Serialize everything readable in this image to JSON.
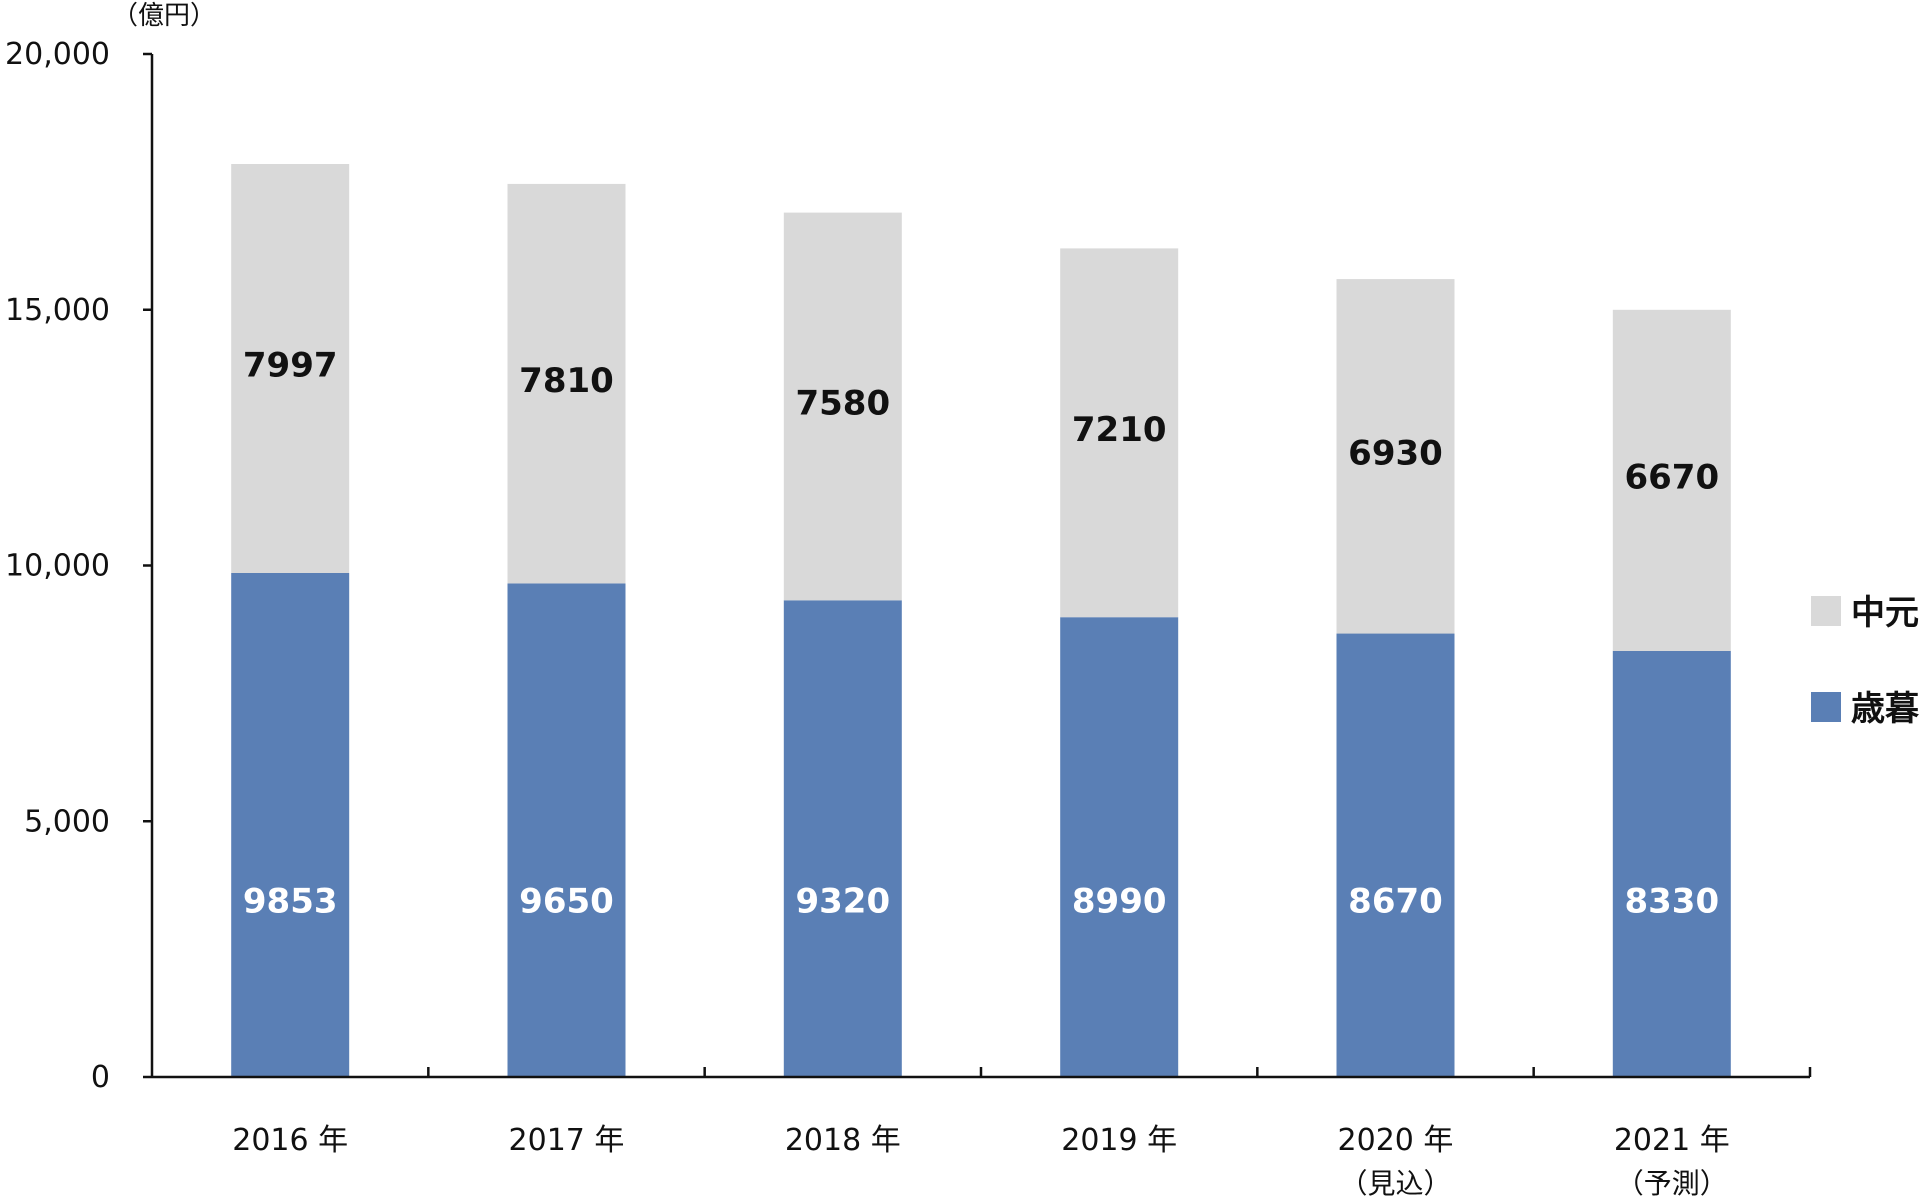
{
  "chart_data": {
    "type": "bar",
    "stacked": true,
    "unit_label": "（億円）",
    "categories": [
      "2016 年",
      "2017 年",
      "2018 年",
      "2019 年",
      "2020 年",
      "2021 年"
    ],
    "category_notes": [
      "",
      "",
      "",
      "",
      "（見込）",
      "（予測）"
    ],
    "series": [
      {
        "name": "歳暮",
        "values": [
          9853,
          9650,
          9320,
          8990,
          8670,
          8330
        ],
        "color": "#5a7fb5"
      },
      {
        "name": "中元",
        "values": [
          7997,
          7810,
          7580,
          7210,
          6930,
          6670
        ],
        "color": "#d9d9d9"
      }
    ],
    "ylim": [
      0,
      20000
    ],
    "yticks": [
      0,
      5000,
      10000,
      15000,
      20000
    ],
    "ytick_labels": [
      "0",
      "5,000",
      "10,000",
      "15,000",
      "20,000"
    ],
    "grid": false,
    "legend_position": "right",
    "legend_order": [
      "中元",
      "歳暮"
    ]
  }
}
